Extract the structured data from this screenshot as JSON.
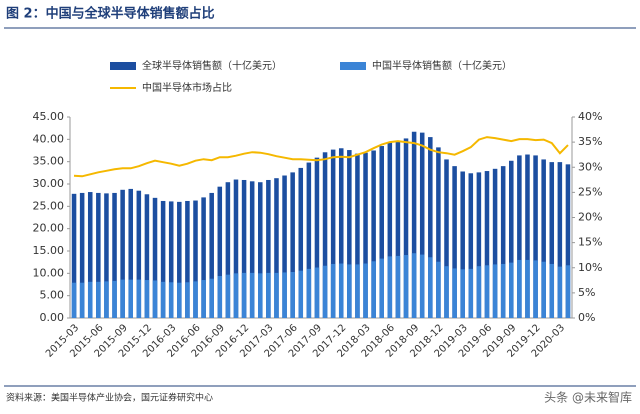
{
  "chart_data": {
    "type": "bar",
    "title": "图 2：中国与全球半导体销售额占比",
    "categories": [
      "2015-03",
      null,
      null,
      "2015-06",
      null,
      null,
      "2015-09",
      null,
      null,
      "2015-12",
      null,
      null,
      "2016-03",
      null,
      null,
      "2016-06",
      null,
      null,
      "2016-09",
      null,
      null,
      "2016-12",
      null,
      null,
      "2017-03",
      null,
      null,
      "2017-06",
      null,
      null,
      "2017-09",
      null,
      null,
      "2017-12",
      null,
      null,
      "2018-03",
      null,
      null,
      "2018-06",
      null,
      null,
      "2018-09",
      null,
      null,
      "2018-12",
      null,
      null,
      "2019-03",
      null,
      null,
      "2019-06",
      null,
      null,
      "2019-09",
      null,
      null,
      "2019-12",
      null,
      null,
      "2020-03",
      null
    ],
    "series": [
      {
        "name": "全球半导体销售额（十亿美元）",
        "color": "#1c4ea0",
        "type": "bar",
        "values": [
          27.8,
          28.0,
          28.2,
          28.0,
          27.9,
          28.0,
          28.7,
          28.9,
          28.5,
          27.7,
          26.9,
          26.2,
          26.1,
          26.0,
          26.2,
          26.3,
          27.0,
          28.0,
          29.4,
          30.4,
          31.0,
          30.9,
          30.6,
          30.4,
          30.9,
          31.3,
          31.9,
          32.6,
          33.6,
          34.8,
          35.9,
          37.1,
          37.7,
          38.0,
          37.6,
          36.8,
          37.0,
          37.5,
          38.5,
          39.3,
          39.5,
          40.2,
          41.7,
          41.5,
          40.5,
          38.2,
          35.5,
          34.0,
          32.8,
          32.4,
          32.6,
          32.9,
          33.4,
          34.0,
          35.2,
          36.4,
          36.6,
          36.4,
          35.5,
          34.9,
          34.9,
          34.4
        ]
      },
      {
        "name": "中国半导体销售额（十亿美元）",
        "color": "#3b84d6",
        "type": "bar",
        "values": [
          7.9,
          7.9,
          8.1,
          8.1,
          8.2,
          8.3,
          8.6,
          8.6,
          8.6,
          8.5,
          8.4,
          8.1,
          8.0,
          7.9,
          8.0,
          8.2,
          8.5,
          8.8,
          9.4,
          9.7,
          10.0,
          10.1,
          10.1,
          10.0,
          10.1,
          10.1,
          10.2,
          10.3,
          10.6,
          11.0,
          11.3,
          11.7,
          12.1,
          12.2,
          12.0,
          12.0,
          12.2,
          12.7,
          13.3,
          13.8,
          13.9,
          14.1,
          14.5,
          14.2,
          13.6,
          12.6,
          11.6,
          11.1,
          10.9,
          11.0,
          11.6,
          11.8,
          12.0,
          12.1,
          12.4,
          13.0,
          13.0,
          12.9,
          12.6,
          12.1,
          11.5,
          11.8
        ]
      },
      {
        "name": "中国半导体市场占比",
        "color": "#f5b800",
        "type": "line",
        "axis": "y2",
        "values": [
          28.3,
          28.2,
          28.6,
          29.0,
          29.3,
          29.6,
          29.8,
          29.8,
          30.2,
          30.8,
          31.3,
          31.0,
          30.7,
          30.3,
          30.7,
          31.3,
          31.6,
          31.4,
          32.0,
          32.0,
          32.3,
          32.7,
          33.0,
          32.9,
          32.6,
          32.2,
          31.9,
          31.6,
          31.6,
          31.5,
          31.4,
          31.6,
          32.0,
          32.1,
          32.0,
          32.5,
          33.0,
          33.8,
          34.5,
          35.0,
          35.2,
          35.0,
          34.8,
          34.3,
          33.5,
          33.0,
          32.8,
          32.5,
          33.2,
          34.0,
          35.5,
          36.0,
          35.8,
          35.5,
          35.2,
          35.6,
          35.6,
          35.4,
          35.5,
          34.8,
          32.8,
          34.4
        ]
      }
    ],
    "ylim": [
      0,
      45
    ],
    "yticks": [
      {
        "value": 0,
        "label": "0.00"
      },
      {
        "value": 5,
        "label": "5.00"
      },
      {
        "value": 10,
        "label": "10.00"
      },
      {
        "value": 15,
        "label": "15.00"
      },
      {
        "value": 20,
        "label": "20.00"
      },
      {
        "value": 25,
        "label": "25.00"
      },
      {
        "value": 30,
        "label": "30.00"
      },
      {
        "value": 35,
        "label": "35.00"
      },
      {
        "value": 40,
        "label": "40.00"
      },
      {
        "value": 45,
        "label": "45.00"
      }
    ],
    "y2lim": [
      0,
      40
    ],
    "y2ticks": [
      {
        "value": 0,
        "label": "0%"
      },
      {
        "value": 5,
        "label": "5%"
      },
      {
        "value": 10,
        "label": "10%"
      },
      {
        "value": 15,
        "label": "15%"
      },
      {
        "value": 20,
        "label": "20%"
      },
      {
        "value": 25,
        "label": "25%"
      },
      {
        "value": 30,
        "label": "30%"
      },
      {
        "value": 35,
        "label": "35%"
      },
      {
        "value": 40,
        "label": "40%"
      }
    ],
    "grid": false
  },
  "source": "资料来源：美国半导体产业协会，国元证券研究中心",
  "watermark": "头条 @未来智库"
}
